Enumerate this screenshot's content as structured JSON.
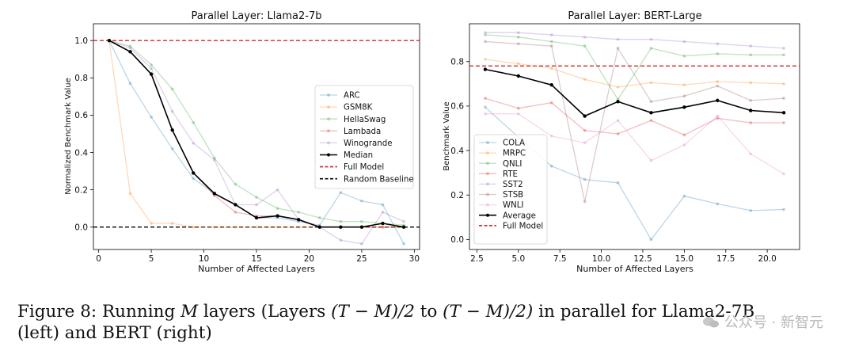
{
  "figure": {
    "caption_parts": {
      "label": "Figure 8: Running",
      "m": "M",
      "mid1": "layers (Layers",
      "expr1": "(T − M)/2",
      "to": "to",
      "expr2": "(T − M)/2)",
      "rest": "in parallel for Llama2-7B",
      "line2": "(left) and BERT (right)"
    },
    "watermark": "公众号 · 新智元"
  },
  "chart_data": [
    {
      "type": "line",
      "title": "Parallel Layer: Llama2-7b",
      "xlabel": "Number of Affected Layers",
      "ylabel": "Normalized Benchmark Value",
      "xlim": [
        -0.5,
        30.5
      ],
      "ylim": [
        -0.12,
        1.09
      ],
      "xticks": [
        0,
        5,
        10,
        15,
        20,
        25,
        30
      ],
      "xtick_labels": [
        "0",
        "5",
        "10",
        "15",
        "20",
        "25",
        "30"
      ],
      "yticks": [
        0.0,
        0.2,
        0.4,
        0.6,
        0.8,
        1.0
      ],
      "ytick_labels": [
        "0.0",
        "0.2",
        "0.4",
        "0.6",
        "0.8",
        "1.0"
      ],
      "legend_position": "center-right",
      "grid": false,
      "series": [
        {
          "name": "ARC",
          "color": "#1f77b4",
          "alpha": 0.3,
          "x": [
            1,
            3,
            5,
            7,
            9,
            11,
            13,
            15,
            17,
            19,
            21,
            23,
            25,
            27,
            29
          ],
          "values": [
            1.0,
            0.77,
            0.59,
            0.42,
            0.26,
            0.18,
            0.12,
            0.05,
            0.05,
            0.03,
            0.01,
            0.185,
            0.14,
            0.12,
            -0.09
          ]
        },
        {
          "name": "GSM8K",
          "color": "#ff7f0e",
          "alpha": 0.3,
          "x": [
            1,
            3,
            5,
            7,
            9,
            11,
            13,
            15,
            17,
            19,
            21,
            23,
            25,
            27,
            29
          ],
          "values": [
            1.0,
            0.18,
            0.02,
            0.02,
            0.0,
            0.0,
            0.0,
            0.0,
            0.0,
            0.0,
            0.0,
            0.0,
            0.0,
            0.0,
            0.0
          ]
        },
        {
          "name": "HellaSwag",
          "color": "#2ca02c",
          "alpha": 0.3,
          "x": [
            1,
            3,
            5,
            7,
            9,
            11,
            13,
            15,
            17,
            19,
            21,
            23,
            25,
            27,
            29
          ],
          "values": [
            1.0,
            0.97,
            0.87,
            0.74,
            0.56,
            0.37,
            0.23,
            0.16,
            0.1,
            0.08,
            0.05,
            0.03,
            0.03,
            0.02,
            0.01
          ]
        },
        {
          "name": "Lambada",
          "color": "#d62728",
          "alpha": 0.3,
          "x": [
            1,
            3,
            5,
            7,
            9,
            11,
            13,
            15,
            17,
            19,
            21,
            23,
            25,
            27,
            29
          ],
          "values": [
            1.0,
            0.94,
            0.82,
            0.52,
            0.29,
            0.17,
            0.08,
            0.06,
            0.06,
            0.04,
            0.0,
            0.0,
            0.0,
            0.0,
            0.0
          ]
        },
        {
          "name": "Winogrande",
          "color": "#9467bd",
          "alpha": 0.3,
          "x": [
            1,
            3,
            5,
            7,
            9,
            11,
            13,
            15,
            17,
            19,
            21,
            23,
            25,
            27,
            29
          ],
          "values": [
            1.0,
            0.96,
            0.85,
            0.62,
            0.45,
            0.36,
            0.12,
            0.12,
            0.2,
            0.04,
            0.0,
            -0.07,
            -0.09,
            0.08,
            0.03
          ]
        },
        {
          "name": "Median",
          "color": "#000000",
          "alpha": 1.0,
          "x": [
            1,
            3,
            5,
            7,
            9,
            11,
            13,
            15,
            17,
            19,
            21,
            23,
            25,
            27,
            29
          ],
          "values": [
            1.0,
            0.94,
            0.82,
            0.52,
            0.29,
            0.18,
            0.12,
            0.05,
            0.06,
            0.04,
            0.0,
            0.0,
            0.0,
            0.02,
            0.0
          ]
        }
      ],
      "reference_lines": [
        {
          "name": "Full Model",
          "y": 1.0,
          "color": "#d62728"
        },
        {
          "name": "Random Baseline",
          "y": 0.0,
          "color": "#000000"
        }
      ]
    },
    {
      "type": "line",
      "title": "Parallel Layer: BERT-Large",
      "xlabel": "Number of Affected Layers",
      "ylabel": "Benchmark Value",
      "xlim": [
        2.05,
        21.95
      ],
      "ylim": [
        -0.045,
        0.97
      ],
      "xticks": [
        2.5,
        5.0,
        7.5,
        10.0,
        12.5,
        15.0,
        17.5,
        20.0
      ],
      "xtick_labels": [
        "2.5",
        "5.0",
        "7.5",
        "10.0",
        "12.5",
        "15.0",
        "17.5",
        "20.0"
      ],
      "yticks": [
        0.0,
        0.2,
        0.4,
        0.6,
        0.8
      ],
      "ytick_labels": [
        "0.0",
        "0.2",
        "0.4",
        "0.6",
        "0.8"
      ],
      "legend_position": "lower-left",
      "grid": false,
      "series": [
        {
          "name": "COLA",
          "color": "#1f77b4",
          "alpha": 0.3,
          "x": [
            3,
            5,
            7,
            9,
            11,
            13,
            15,
            17,
            19,
            21
          ],
          "values": [
            0.595,
            0.46,
            0.33,
            0.27,
            0.255,
            0.0,
            0.195,
            0.16,
            0.13,
            0.135
          ]
        },
        {
          "name": "MRPC",
          "color": "#ff7f0e",
          "alpha": 0.3,
          "x": [
            3,
            5,
            7,
            9,
            11,
            13,
            15,
            17,
            19,
            21
          ],
          "values": [
            0.81,
            0.79,
            0.77,
            0.72,
            0.685,
            0.705,
            0.695,
            0.71,
            0.705,
            0.7
          ]
        },
        {
          "name": "QNLI",
          "color": "#2ca02c",
          "alpha": 0.3,
          "x": [
            3,
            5,
            7,
            9,
            11,
            13,
            15,
            17,
            19,
            21
          ],
          "values": [
            0.92,
            0.91,
            0.89,
            0.87,
            0.63,
            0.86,
            0.825,
            0.835,
            0.83,
            0.83
          ]
        },
        {
          "name": "RTE",
          "color": "#d62728",
          "alpha": 0.3,
          "x": [
            3,
            5,
            7,
            9,
            11,
            13,
            15,
            17,
            19,
            21
          ],
          "values": [
            0.635,
            0.59,
            0.615,
            0.49,
            0.475,
            0.535,
            0.47,
            0.545,
            0.525,
            0.525
          ]
        },
        {
          "name": "SST2",
          "color": "#9467bd",
          "alpha": 0.3,
          "x": [
            3,
            5,
            7,
            9,
            11,
            13,
            15,
            17,
            19,
            21
          ],
          "values": [
            0.93,
            0.93,
            0.92,
            0.91,
            0.9,
            0.9,
            0.89,
            0.88,
            0.87,
            0.86
          ]
        },
        {
          "name": "STSB",
          "color": "#8c564b",
          "alpha": 0.3,
          "x": [
            3,
            5,
            7,
            9,
            11,
            13,
            15,
            17,
            19,
            21
          ],
          "values": [
            0.89,
            0.88,
            0.87,
            0.17,
            0.86,
            0.62,
            0.645,
            0.69,
            0.625,
            0.635
          ]
        },
        {
          "name": "WNLI",
          "color": "#e377c2",
          "alpha": 0.3,
          "x": [
            3,
            5,
            7,
            9,
            11,
            13,
            15,
            17,
            19,
            21
          ],
          "values": [
            0.565,
            0.565,
            0.465,
            0.435,
            0.535,
            0.355,
            0.425,
            0.555,
            0.385,
            0.295
          ]
        },
        {
          "name": "Average",
          "color": "#000000",
          "alpha": 1.0,
          "x": [
            3,
            5,
            7,
            9,
            11,
            13,
            15,
            17,
            19,
            21
          ],
          "values": [
            0.765,
            0.735,
            0.695,
            0.555,
            0.62,
            0.57,
            0.595,
            0.625,
            0.58,
            0.57
          ]
        }
      ],
      "reference_lines": [
        {
          "name": "Full Model",
          "y": 0.78,
          "color": "#d62728"
        }
      ]
    }
  ]
}
